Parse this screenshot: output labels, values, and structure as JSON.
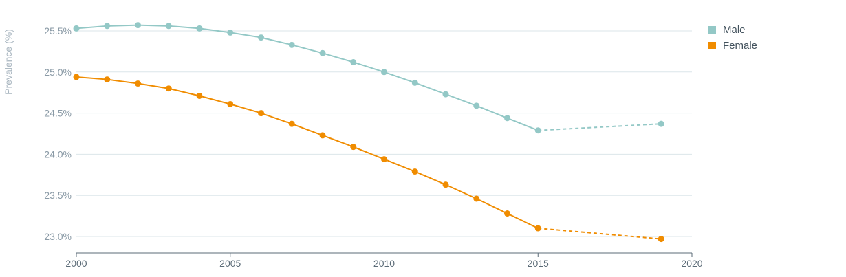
{
  "chart_data": {
    "type": "line",
    "title": "",
    "xlabel": "",
    "ylabel": "Prevalence (%)",
    "xlim": [
      2000,
      2020
    ],
    "ylim": [
      22.8,
      25.7
    ],
    "x_ticks": [
      "2000",
      "2005",
      "2010",
      "2015",
      "2020"
    ],
    "y_ticks": [
      "23.0%",
      "23.5%",
      "24.0%",
      "24.5%",
      "25.0%",
      "25.5%"
    ],
    "y_tick_values": [
      23.0,
      23.5,
      24.0,
      24.5,
      25.0,
      25.5
    ],
    "grid": "horizontal",
    "legend_position": "top-right",
    "series": [
      {
        "name": "Male",
        "color": "#93c8c6",
        "x": [
          2000,
          2001,
          2002,
          2003,
          2004,
          2005,
          2006,
          2007,
          2008,
          2009,
          2010,
          2011,
          2012,
          2013,
          2014,
          2015,
          2019
        ],
        "values": [
          25.53,
          25.56,
          25.57,
          25.56,
          25.53,
          25.48,
          25.42,
          25.33,
          25.23,
          25.12,
          25.0,
          24.87,
          24.73,
          24.59,
          24.44,
          24.29,
          24.37
        ],
        "dashed_from_index": 15
      },
      {
        "name": "Female",
        "color": "#f08c00",
        "x": [
          2000,
          2001,
          2002,
          2003,
          2004,
          2005,
          2006,
          2007,
          2008,
          2009,
          2010,
          2011,
          2012,
          2013,
          2014,
          2015,
          2019
        ],
        "values": [
          24.94,
          24.91,
          24.86,
          24.8,
          24.71,
          24.61,
          24.5,
          24.37,
          24.23,
          24.09,
          23.94,
          23.79,
          23.63,
          23.46,
          23.28,
          23.1,
          22.97
        ],
        "dashed_from_index": 15
      }
    ]
  }
}
